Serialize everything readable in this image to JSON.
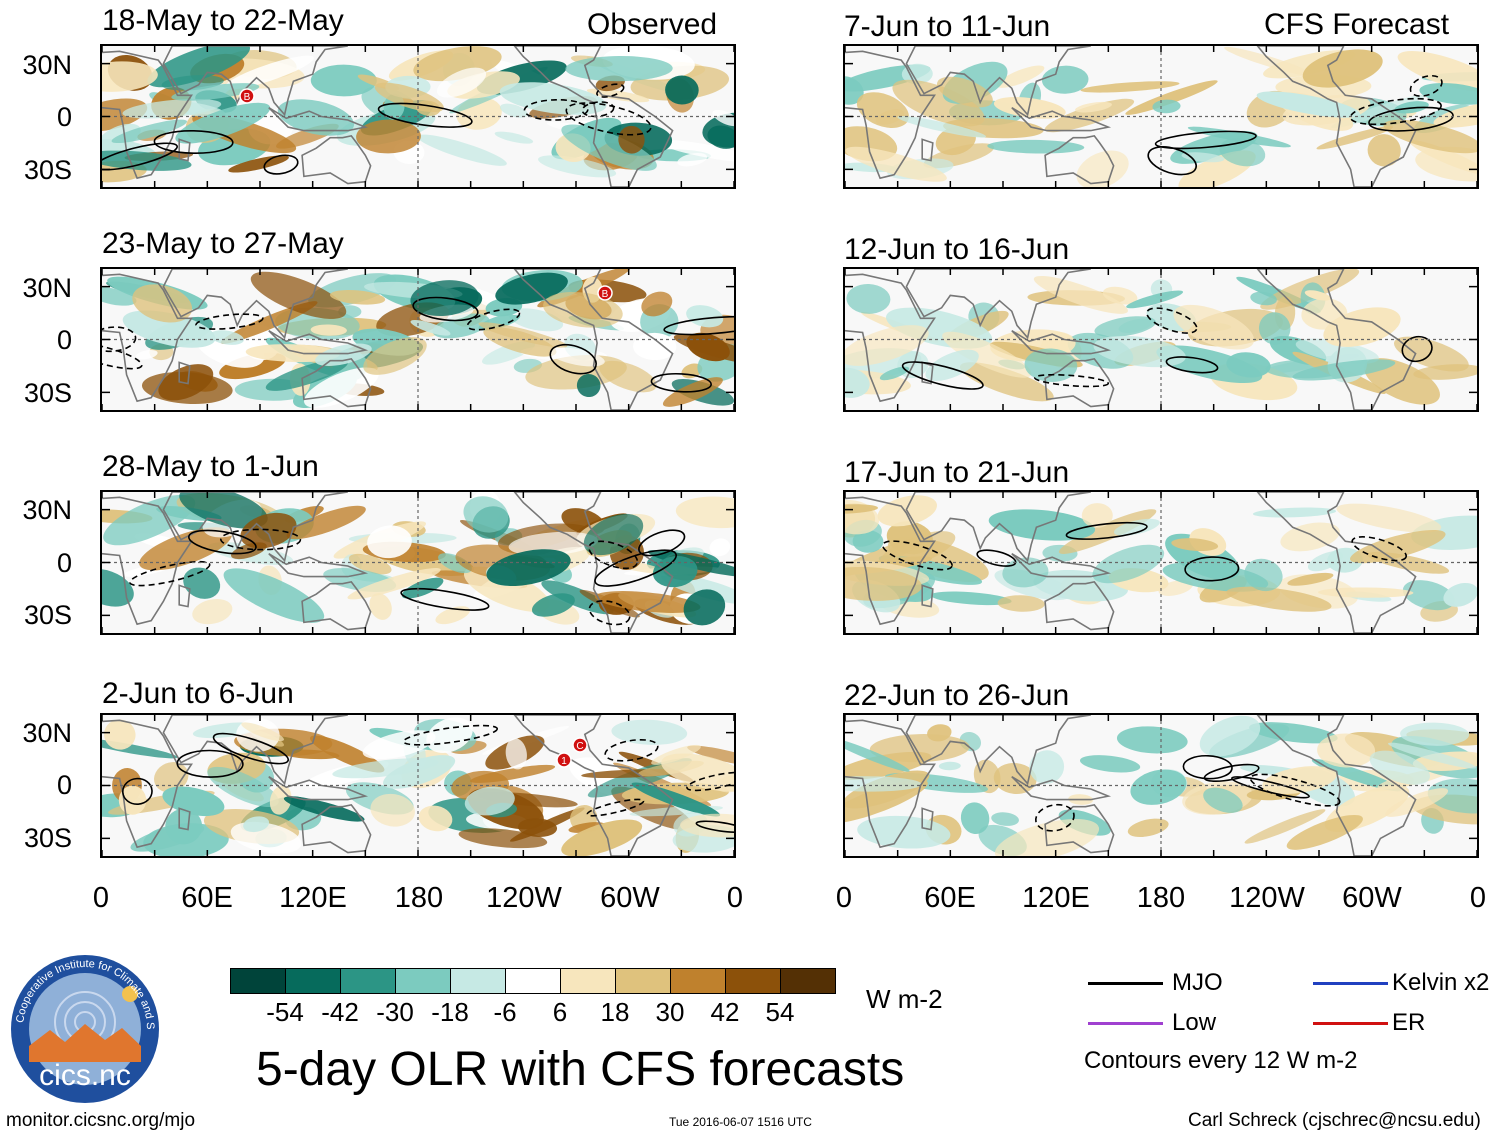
{
  "chart_data": {
    "type": "heatmap",
    "title": "5-day OLR with CFS forecasts",
    "column_headers": [
      "Observed",
      "CFS Forecast"
    ],
    "units": "W m-2",
    "y_ticks": [
      "30N",
      "0",
      "30S"
    ],
    "x_ticks": [
      "0",
      "60E",
      "120E",
      "180",
      "120W",
      "60W",
      "0"
    ],
    "colorbar": {
      "labels": [
        "-54",
        "-42",
        "-30",
        "-18",
        "-6",
        "6",
        "18",
        "30",
        "42",
        "54"
      ],
      "colors": [
        "#00443a",
        "#066b5c",
        "#2c9585",
        "#7ccbbf",
        "#c6e9e4",
        "#ffffff",
        "#f7e6bd",
        "#dfc27d",
        "#bf812d",
        "#8c510a",
        "#543005"
      ]
    },
    "panels": [
      {
        "col": "Observed",
        "label": "18-May to 22-May",
        "tc_markers": [
          "B"
        ]
      },
      {
        "col": "Observed",
        "label": "23-May to 27-May",
        "tc_markers": [
          "B"
        ]
      },
      {
        "col": "Observed",
        "label": "28-May to 1-Jun",
        "tc_markers": []
      },
      {
        "col": "Observed",
        "label": "2-Jun to 6-Jun",
        "tc_markers": [
          "1",
          "C"
        ]
      },
      {
        "col": "CFS Forecast",
        "label": "7-Jun to 11-Jun",
        "tc_markers": []
      },
      {
        "col": "CFS Forecast",
        "label": "12-Jun to 16-Jun",
        "tc_markers": []
      },
      {
        "col": "CFS Forecast",
        "label": "17-Jun to 21-Jun",
        "tc_markers": []
      },
      {
        "col": "CFS Forecast",
        "label": "22-Jun to 26-Jun",
        "tc_markers": []
      }
    ],
    "legend": [
      {
        "label": "MJO",
        "color": "#000000"
      },
      {
        "label": "Kelvin x2",
        "color": "#2040c0"
      },
      {
        "label": "Low",
        "color": "#a040d0"
      },
      {
        "label": "ER",
        "color": "#d01010"
      }
    ],
    "contour_note": "Contours every 12 W m-2"
  },
  "footer": {
    "left": "monitor.cicsnc.org/mjo",
    "center": "Tue 2016-06-07 1516 UTC",
    "right": "Carl Schreck (cjschrec@ncsu.edu)"
  },
  "logo": {
    "text": "cics.nc",
    "ring_text": "Cooperative Institute for Climate and Satellites"
  }
}
